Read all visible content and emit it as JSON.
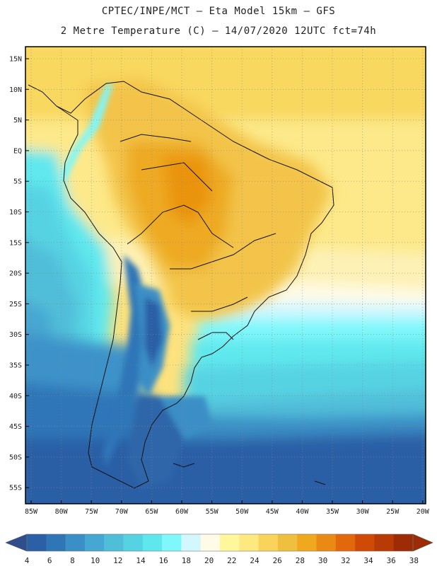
{
  "header": {
    "line1": "CPTEC/INPE/MCT –  Eta Model 15km – GFS",
    "line2": "2 Metre Temperature (C) – 14/07/2020 12UTC fct=74h"
  },
  "map": {
    "lat_ticks": [
      "15N",
      "10N",
      "5N",
      "EQ",
      "5S",
      "10S",
      "15S",
      "20S",
      "25S",
      "30S",
      "35S",
      "40S",
      "45S",
      "50S",
      "55S"
    ],
    "lon_ticks": [
      "85W",
      "80W",
      "75W",
      "70W",
      "65W",
      "60W",
      "55W",
      "50W",
      "45W",
      "40W",
      "35W",
      "30W",
      "25W",
      "20W"
    ]
  },
  "colorbar": {
    "labels": [
      "4",
      "6",
      "8",
      "10",
      "12",
      "14",
      "16",
      "18",
      "20",
      "22",
      "24",
      "26",
      "28",
      "30",
      "32",
      "34",
      "36",
      "38"
    ],
    "colors": [
      "#2b5fa6",
      "#2f76b7",
      "#3a8fc6",
      "#46a7d2",
      "#51bed9",
      "#56d3e3",
      "#5ee8ee",
      "#7ff7fb",
      "#d2f7ff",
      "#fffbe6",
      "#fff79b",
      "#fde980",
      "#f9d35a",
      "#efc03f",
      "#f0a81e",
      "#ea8a14",
      "#e2680b",
      "#cf4a07",
      "#b83a04",
      "#9d2c06"
    ],
    "under_color": "#2e4f8c",
    "over_color": "#9d2c06"
  }
}
